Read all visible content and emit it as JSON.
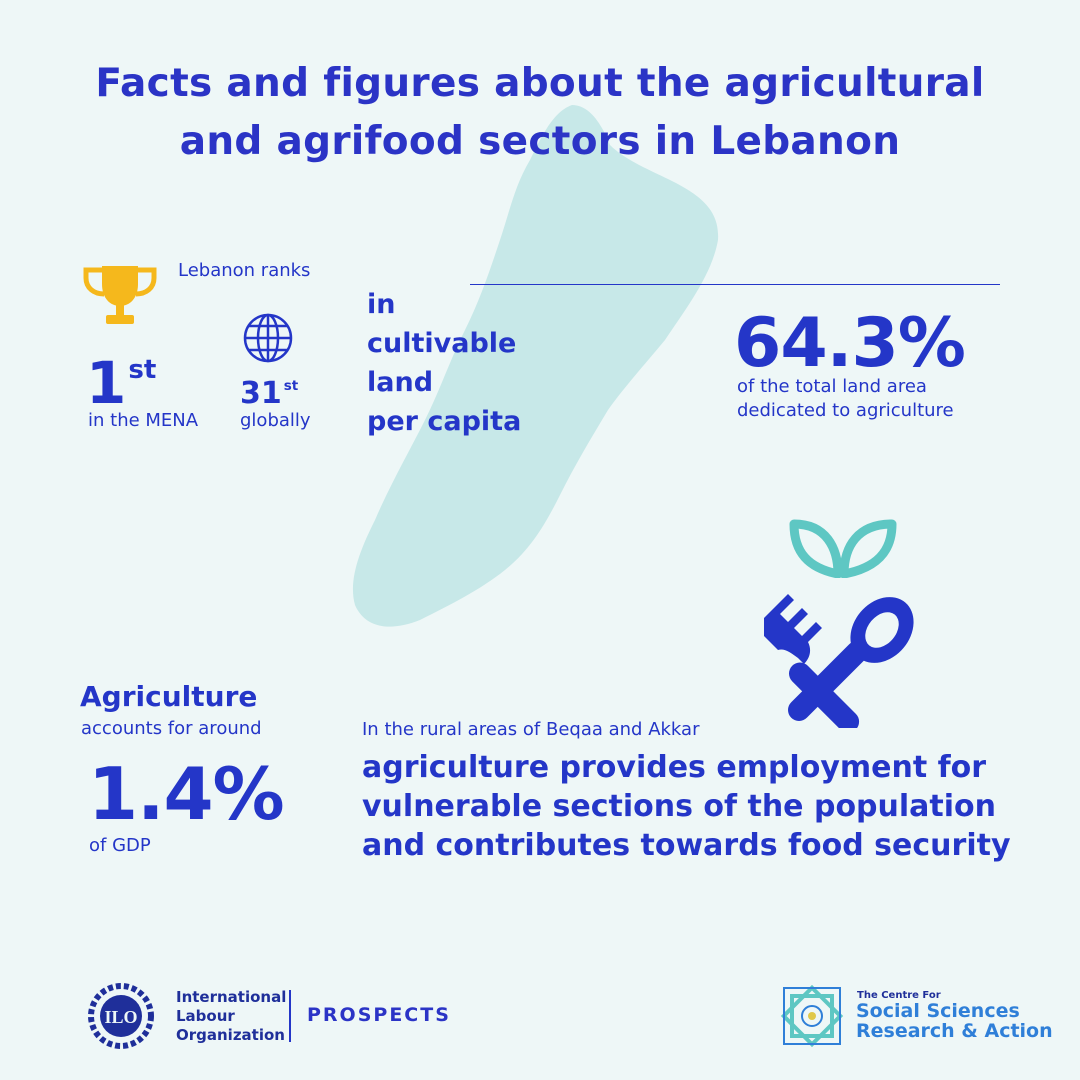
{
  "title": {
    "line1": "Facts and figures about the agricultural",
    "line2": "and agrifood sectors in Lebanon"
  },
  "rank": {
    "intro": "Lebanon ranks",
    "mena_number": "1",
    "mena_suffix": "st",
    "mena_caption": "in the MENA",
    "global_number": "31",
    "global_suffix": "st",
    "global_caption": "globally",
    "category_lines": [
      "in",
      "cultivable",
      "land",
      "per capita"
    ]
  },
  "land": {
    "value": "64.3%",
    "caption_line1": "of the total land area",
    "caption_line2": "dedicated to agriculture"
  },
  "gdp": {
    "heading": "Agriculture",
    "subheading": "accounts for around",
    "value": "1.4%",
    "caption": "of GDP"
  },
  "rural": {
    "caption": "In the rural areas of Beqaa and Akkar",
    "lines": [
      "agriculture provides employment for",
      "vulnerable sections of the population",
      "and contributes towards food security"
    ]
  },
  "footer": {
    "ilo_lines": [
      "International",
      "Labour",
      "Organization"
    ],
    "ilo_emblem_text": "ILO",
    "prospects": "PROSPECTS",
    "cssra_top": "The Centre For",
    "cssra_line1": "Social Sciences",
    "cssra_line2": "Research & Action"
  },
  "icons": [
    "trophy-icon",
    "globe-icon",
    "leaf-icon",
    "fork-spoon-icon",
    "lebanon-map"
  ],
  "colors": {
    "background": "#eef7f7",
    "primary": "#2436c8",
    "map": "#c7e8e8",
    "trophy": "#f5b81c",
    "leaf": "#5ec7c3",
    "cssra_blue": "#2f7fd8"
  }
}
